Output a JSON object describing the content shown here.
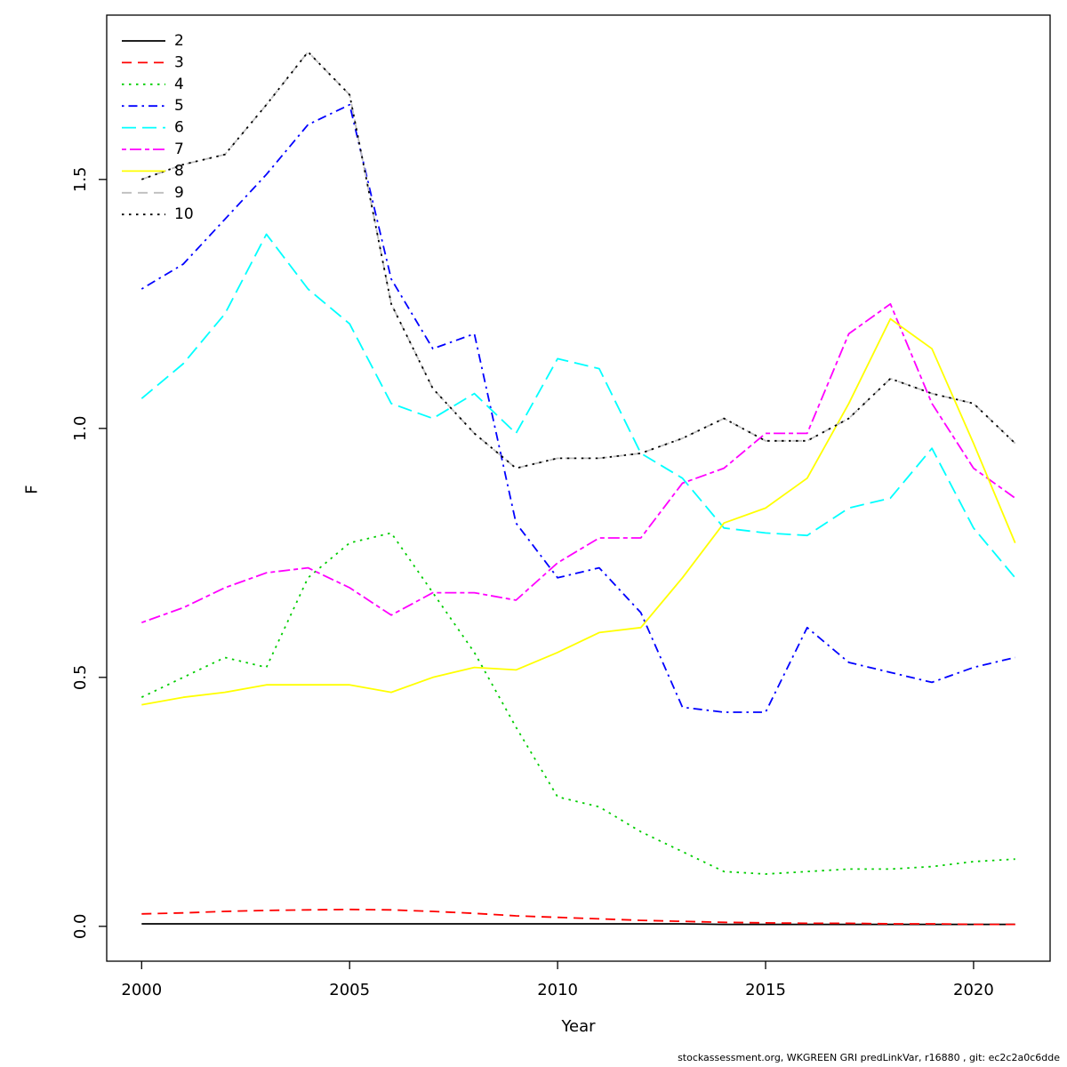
{
  "footer": {
    "text": "stockassessment.org, WKGREEN GRI predLinkVar, r16880 , git: ec2c2a0c6dde"
  },
  "chart_data": {
    "type": "line",
    "title": "",
    "xlabel": "Year",
    "ylabel": "F",
    "grid": false,
    "legend_position": "top-left",
    "x": [
      2000,
      2001,
      2002,
      2003,
      2004,
      2005,
      2006,
      2007,
      2008,
      2009,
      2010,
      2011,
      2012,
      2013,
      2014,
      2015,
      2016,
      2017,
      2018,
      2019,
      2020,
      2021
    ],
    "xlim": [
      1999.16,
      2021.84
    ],
    "ylim": [
      -0.07,
      1.83
    ],
    "x_ticks": [
      2000,
      2005,
      2010,
      2015,
      2020
    ],
    "y_ticks": [
      0.0,
      0.5,
      1.0,
      1.5
    ],
    "series": [
      {
        "name": "2",
        "color": "#000000",
        "linestyle": "solid",
        "values": [
          0.005,
          0.005,
          0.005,
          0.005,
          0.005,
          0.005,
          0.005,
          0.005,
          0.005,
          0.005,
          0.005,
          0.005,
          0.005,
          0.005,
          0.004,
          0.004,
          0.004,
          0.004,
          0.004,
          0.004,
          0.004,
          0.004
        ]
      },
      {
        "name": "3",
        "color": "#ff0000",
        "linestyle": "dashed",
        "values": [
          0.025,
          0.027,
          0.03,
          0.032,
          0.033,
          0.034,
          0.033,
          0.03,
          0.026,
          0.021,
          0.018,
          0.015,
          0.012,
          0.01,
          0.008,
          0.007,
          0.006,
          0.006,
          0.005,
          0.005,
          0.004,
          0.004
        ]
      },
      {
        "name": "4",
        "color": "#00cd00",
        "linestyle": "dotted",
        "values": [
          0.46,
          0.5,
          0.54,
          0.52,
          0.7,
          0.77,
          0.79,
          0.67,
          0.55,
          0.4,
          0.26,
          0.24,
          0.19,
          0.15,
          0.11,
          0.105,
          0.11,
          0.115,
          0.115,
          0.12,
          0.13,
          0.135
        ]
      },
      {
        "name": "5",
        "color": "#0000ff",
        "linestyle": "dashdot",
        "values": [
          1.28,
          1.33,
          1.42,
          1.51,
          1.61,
          1.65,
          1.3,
          1.16,
          1.19,
          0.81,
          0.7,
          0.72,
          0.63,
          0.44,
          0.43,
          0.43,
          0.6,
          0.53,
          0.51,
          0.49,
          0.52,
          0.54
        ]
      },
      {
        "name": "6",
        "color": "#00ffff",
        "linestyle": "longdash",
        "values": [
          1.06,
          1.13,
          1.23,
          1.39,
          1.28,
          1.21,
          1.05,
          1.02,
          1.07,
          0.99,
          1.14,
          1.12,
          0.95,
          0.9,
          0.8,
          0.79,
          0.785,
          0.84,
          0.86,
          0.96,
          0.8,
          0.7
        ]
      },
      {
        "name": "7",
        "color": "#ff00ff",
        "linestyle": "twodash",
        "values": [
          0.61,
          0.64,
          0.68,
          0.71,
          0.72,
          0.68,
          0.625,
          0.67,
          0.67,
          0.655,
          0.73,
          0.78,
          0.78,
          0.89,
          0.92,
          0.99,
          0.99,
          1.19,
          1.25,
          1.05,
          0.92,
          0.86
        ]
      },
      {
        "name": "8",
        "color": "#ffff00",
        "linestyle": "solid",
        "values": [
          0.445,
          0.46,
          0.47,
          0.485,
          0.485,
          0.485,
          0.47,
          0.5,
          0.52,
          0.515,
          0.55,
          0.59,
          0.6,
          0.7,
          0.81,
          0.84,
          0.9,
          1.05,
          1.22,
          1.16,
          0.97,
          0.77
        ]
      },
      {
        "name": "9",
        "color": "#bebebe",
        "linestyle": "dashed",
        "values": [
          1.5,
          1.53,
          1.55,
          1.65,
          1.756,
          1.67,
          1.25,
          1.08,
          0.99,
          0.92,
          0.94,
          0.94,
          0.95,
          0.98,
          1.02,
          0.975,
          0.975,
          1.02,
          1.1,
          1.07,
          1.05,
          0.97
        ]
      },
      {
        "name": "10",
        "color": "#000000",
        "linestyle": "dotted",
        "values": [
          1.5,
          1.53,
          1.55,
          1.65,
          1.756,
          1.67,
          1.25,
          1.08,
          0.99,
          0.92,
          0.94,
          0.94,
          0.95,
          0.98,
          1.02,
          0.975,
          0.975,
          1.02,
          1.1,
          1.07,
          1.05,
          0.97
        ]
      }
    ]
  }
}
